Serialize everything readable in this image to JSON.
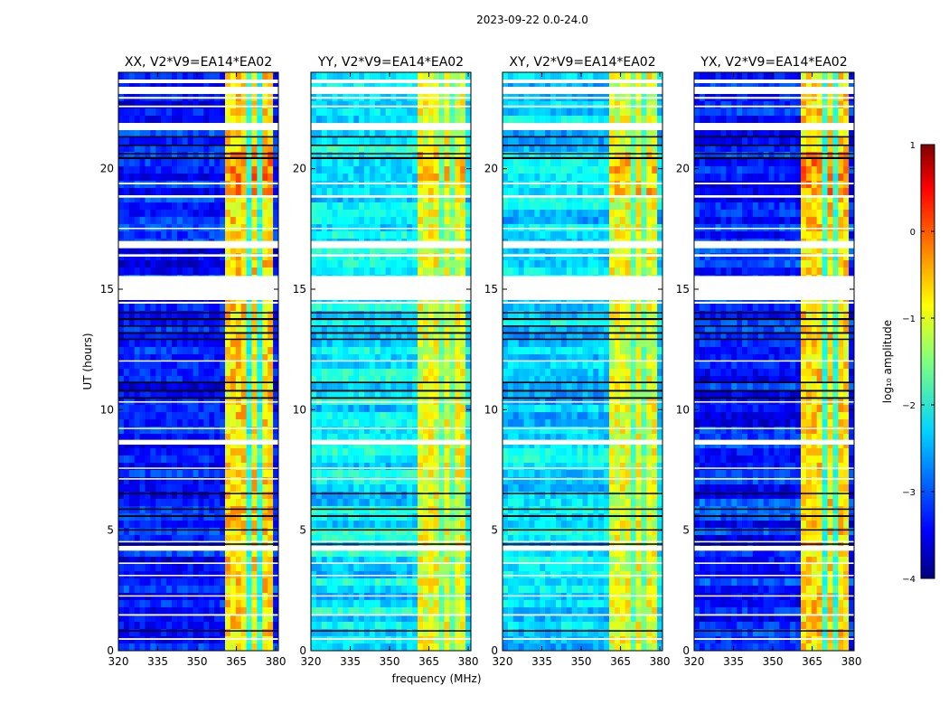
{
  "figure": {
    "suptitle": "2023-09-22 0.0-24.0"
  },
  "chart_data": {
    "type": "heatmap",
    "suptitle": "2023-09-22 0.0-24.0",
    "xlabel": "frequency (MHz)",
    "ylabel": "UT (hours)",
    "xlim": [
      320,
      381
    ],
    "ylim": [
      0,
      24
    ],
    "xticks": [
      "320",
      "335",
      "350",
      "365",
      "380"
    ],
    "xtick_values": [
      320,
      335,
      350,
      365,
      380
    ],
    "yticks": [
      "0",
      "5",
      "10",
      "15",
      "20"
    ],
    "ytick_values": [
      0,
      5,
      10,
      15,
      20
    ],
    "panels": [
      {
        "title": "XX, V2*V9=EA14*EA02",
        "pol": "XX",
        "background_level": -3.3,
        "band_level": -0.7
      },
      {
        "title": "YY, V2*V9=EA14*EA02",
        "pol": "YY",
        "background_level": -2.2,
        "band_level": -1.0
      },
      {
        "title": "XY, V2*V9=EA14*EA02",
        "pol": "XY",
        "background_level": -2.3,
        "band_level": -1.0
      },
      {
        "title": "YX, V2*V9=EA14*EA02",
        "pol": "YX",
        "background_level": -3.2,
        "band_level": -0.7
      }
    ],
    "rfi_band_mhz": [
      360,
      378
    ],
    "rfi_subbands_mhz": [
      [
        360,
        364
      ],
      [
        365,
        369
      ],
      [
        370,
        373
      ],
      [
        374,
        378
      ]
    ],
    "flagged_hours_white": [
      [
        0.45,
        0.52
      ],
      [
        1.45,
        1.52
      ],
      [
        2.25,
        2.3
      ],
      [
        3.1,
        3.15
      ],
      [
        3.6,
        3.66
      ],
      [
        4.15,
        4.35
      ],
      [
        4.5,
        4.55
      ],
      [
        7.1,
        7.16
      ],
      [
        7.55,
        7.6
      ],
      [
        8.55,
        8.75
      ],
      [
        9.2,
        9.25
      ],
      [
        10.3,
        10.35
      ],
      [
        12.0,
        12.05
      ],
      [
        14.4,
        14.48
      ],
      [
        14.55,
        15.0
      ],
      [
        15.0,
        15.55
      ],
      [
        16.35,
        16.45
      ],
      [
        16.7,
        17.0
      ],
      [
        17.5,
        17.55
      ],
      [
        18.8,
        18.9
      ],
      [
        19.35,
        19.42
      ],
      [
        21.6,
        21.9
      ],
      [
        22.55,
        22.62
      ],
      [
        22.9,
        22.98
      ],
      [
        23.1,
        23.4
      ],
      [
        23.55,
        23.7
      ]
    ],
    "flagged_hours_black": [
      [
        0.8,
        0.85
      ],
      [
        4.4,
        4.45
      ],
      [
        5.0,
        5.04
      ],
      [
        5.55,
        5.62
      ],
      [
        5.85,
        5.9
      ],
      [
        6.5,
        6.55
      ],
      [
        10.45,
        10.52
      ],
      [
        10.75,
        10.82
      ],
      [
        11.1,
        11.16
      ],
      [
        12.9,
        12.95
      ],
      [
        13.15,
        13.22
      ],
      [
        13.45,
        13.5
      ],
      [
        13.72,
        13.8
      ],
      [
        14.0,
        14.05
      ],
      [
        20.4,
        20.48
      ],
      [
        20.6,
        20.65
      ],
      [
        20.95,
        21.0
      ],
      [
        21.3,
        21.35
      ]
    ],
    "colorbar": {
      "label": "log₁₀ amplitude",
      "range": [
        -4,
        1
      ],
      "ticks": [
        "1",
        "0",
        "−1",
        "−2",
        "−3",
        "−4"
      ],
      "tick_values": [
        1,
        0,
        -1,
        -2,
        -3,
        -4
      ],
      "colormap": "jet",
      "colors": [
        "#00007f",
        "#0000ff",
        "#007fff",
        "#00ffff",
        "#7fff7f",
        "#ffff00",
        "#ff7f00",
        "#ff0000",
        "#7f0000"
      ]
    }
  }
}
